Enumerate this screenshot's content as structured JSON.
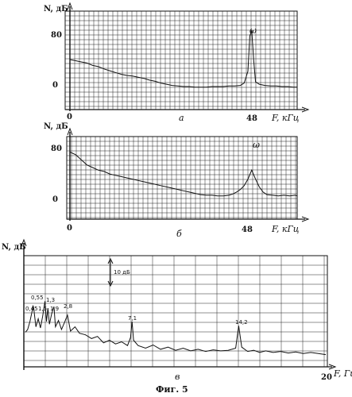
{
  "figure_caption": "Фиг. 5",
  "chart_data": [
    {
      "type": "line",
      "panel_label": "a",
      "ylabel": "N, дБ",
      "xlabel": "F, кГц",
      "y_ticks": [
        "80",
        "0"
      ],
      "x_ticks": [
        "0",
        "48"
      ],
      "peak_label": "ω",
      "x": [
        0,
        1.5,
        3,
        4.5,
        6,
        7.5,
        9,
        10.5,
        12,
        13.5,
        15,
        16.5,
        18,
        19.5,
        21,
        22.5,
        24,
        25.5,
        27,
        28.5,
        30,
        31.5,
        33,
        34.5,
        36,
        37.5,
        39,
        40.5,
        42,
        43.5,
        45,
        46,
        47,
        47.5,
        48,
        48.5,
        49,
        50,
        51.5,
        53,
        54.5,
        56,
        57.5,
        59,
        60
      ],
      "values": [
        50,
        48,
        46,
        44,
        40,
        38,
        34,
        31,
        28,
        25,
        23,
        22,
        20,
        18,
        15,
        13,
        10,
        8,
        6,
        5,
        4,
        4,
        3,
        3,
        3,
        4,
        4,
        4,
        5,
        5,
        6,
        10,
        30,
        90,
        100,
        50,
        12,
        8,
        6,
        5,
        5,
        4,
        4,
        3,
        3
      ]
    },
    {
      "type": "line",
      "panel_label": "б",
      "ylabel": "N, дБ",
      "xlabel": "F, кГц",
      "y_ticks": [
        "80",
        "0"
      ],
      "x_ticks": [
        "0",
        "48"
      ],
      "peak_label": "ω",
      "x": [
        0,
        1.5,
        3,
        4.5,
        6,
        7.5,
        9,
        10.5,
        12,
        13.5,
        15,
        16.5,
        18,
        19.5,
        21,
        22.5,
        24,
        25.5,
        27,
        28.5,
        30,
        31.5,
        33,
        34.5,
        36,
        37.5,
        39,
        40.5,
        42,
        43,
        44,
        45,
        46,
        47,
        48,
        49,
        50,
        51,
        52,
        53.5,
        55,
        56.5,
        58,
        59.5,
        60
      ],
      "values": [
        72,
        68,
        60,
        52,
        48,
        44,
        42,
        38,
        36,
        34,
        32,
        30,
        28,
        26,
        24,
        22,
        20,
        18,
        16,
        14,
        12,
        10,
        8,
        6,
        5,
        5,
        4,
        4,
        5,
        7,
        10,
        14,
        20,
        30,
        44,
        30,
        18,
        10,
        6,
        5,
        4,
        5,
        4,
        5,
        4
      ]
    },
    {
      "type": "line",
      "panel_label": "в",
      "ylabel": "N, дБ",
      "xlabel": "F, Гц",
      "x_ticks": [
        "20"
      ],
      "scale_annotation": "10 дБ",
      "annotations": [
        "0,45",
        "0,55",
        "1,3",
        "1,5",
        "1,9",
        "2,8",
        "7,1",
        "14,2"
      ],
      "x": [
        0,
        0.15,
        0.3,
        0.45,
        0.5,
        0.55,
        0.7,
        0.85,
        1.0,
        1.15,
        1.3,
        1.4,
        1.5,
        1.6,
        1.75,
        1.9,
        2.0,
        2.2,
        2.4,
        2.6,
        2.8,
        3.0,
        3.3,
        3.6,
        4.0,
        4.4,
        4.8,
        5.2,
        5.6,
        6.0,
        6.4,
        6.8,
        7.0,
        7.1,
        7.2,
        7.5,
        8.0,
        8.5,
        9.0,
        9.5,
        10.0,
        10.5,
        11.0,
        11.5,
        12.0,
        12.5,
        13.0,
        13.5,
        14.0,
        14.2,
        14.4,
        14.8,
        15.2,
        15.6,
        16.0,
        16.5,
        17.0,
        17.5,
        18.0,
        18.5,
        19.0,
        19.5,
        20.0
      ],
      "values": [
        50,
        55,
        70,
        90,
        100,
        95,
        60,
        75,
        58,
        80,
        108,
        70,
        95,
        65,
        85,
        98,
        60,
        72,
        55,
        68,
        82,
        52,
        60,
        48,
        45,
        38,
        42,
        30,
        35,
        28,
        32,
        25,
        40,
        70,
        35,
        25,
        20,
        26,
        18,
        22,
        16,
        20,
        15,
        18,
        14,
        17,
        15,
        16,
        20,
        62,
        22,
        14,
        16,
        12,
        15,
        12,
        14,
        11,
        13,
        10,
        12,
        10,
        8
      ]
    }
  ]
}
